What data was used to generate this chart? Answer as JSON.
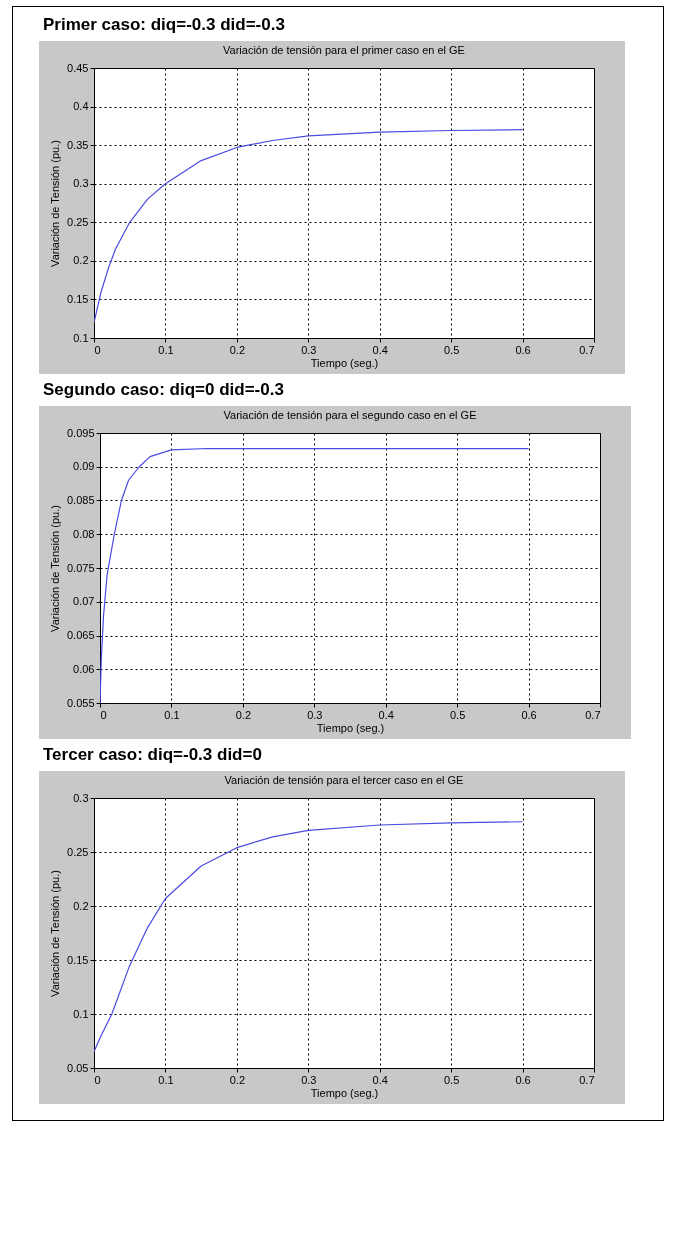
{
  "chart_data": [
    {
      "type": "line",
      "title": "Primer caso: diq=-0.3   did=-0.3",
      "subtitle": "Variación de tensión para el primer caso en el GE",
      "xlabel": "Tiempo (seg.)",
      "ylabel": "Variación de Tensión (pu.)",
      "xlim": [
        0,
        0.7
      ],
      "xticks": [
        0,
        0.1,
        0.2,
        0.3,
        0.4,
        0.5,
        0.6,
        0.7
      ],
      "ylim": [
        0.1,
        0.45
      ],
      "yticks": [
        0.1,
        0.15,
        0.2,
        0.25,
        0.3,
        0.35,
        0.4,
        0.45
      ],
      "grid": true,
      "marker": "none",
      "line_style": "solid",
      "x": [
        0,
        0.01,
        0.02,
        0.03,
        0.05,
        0.075,
        0.1,
        0.15,
        0.2,
        0.25,
        0.3,
        0.4,
        0.5,
        0.6
      ],
      "series": [
        {
          "color": "#4a4ae0",
          "values": [
            0.12,
            0.16,
            0.19,
            0.215,
            0.25,
            0.28,
            0.3,
            0.33,
            0.347,
            0.356,
            0.362,
            0.367,
            0.369,
            0.37
          ]
        }
      ]
    },
    {
      "type": "line",
      "title": "Segundo caso: diq=0   did=-0.3",
      "subtitle": "Variación de tensión para el segundo caso en el GE",
      "xlabel": "Tiempo (seg.)",
      "ylabel": "Variación de Tensión (pu.)",
      "xlim": [
        0,
        0.7
      ],
      "xticks": [
        0,
        0.1,
        0.2,
        0.3,
        0.4,
        0.5,
        0.6,
        0.7
      ],
      "ylim": [
        0.055,
        0.095
      ],
      "yticks": [
        0.055,
        0.06,
        0.065,
        0.07,
        0.075,
        0.08,
        0.085,
        0.09,
        0.095
      ],
      "grid": true,
      "marker": "none",
      "line_style": "solid",
      "x": [
        0,
        0.002,
        0.005,
        0.01,
        0.02,
        0.03,
        0.04,
        0.055,
        0.07,
        0.1,
        0.15,
        0.6
      ],
      "series": [
        {
          "color": "#4a4ae0",
          "values": [
            0.055,
            0.062,
            0.068,
            0.074,
            0.08,
            0.085,
            0.088,
            0.09,
            0.0915,
            0.0925,
            0.0927,
            0.0927
          ]
        }
      ]
    },
    {
      "type": "line",
      "title": "Tercer caso: diq=-0.3   did=0",
      "subtitle": "Variación de tensión para el tercer caso en el GE",
      "xlabel": "Tiempo (seg.)",
      "ylabel": "Variación de Tensión (pu.)",
      "xlim": [
        0,
        0.7
      ],
      "xticks": [
        0,
        0.1,
        0.2,
        0.3,
        0.4,
        0.5,
        0.6,
        0.7
      ],
      "ylim": [
        0.05,
        0.3
      ],
      "yticks": [
        0.05,
        0.1,
        0.15,
        0.2,
        0.25,
        0.3
      ],
      "grid": true,
      "marker": "none",
      "line_style": "solid",
      "x": [
        0,
        0.01,
        0.025,
        0.05,
        0.075,
        0.1,
        0.15,
        0.2,
        0.25,
        0.3,
        0.4,
        0.5,
        0.6
      ],
      "series": [
        {
          "color": "#4a4ae0",
          "values": [
            0.065,
            0.08,
            0.1,
            0.145,
            0.18,
            0.207,
            0.237,
            0.254,
            0.264,
            0.27,
            0.275,
            0.277,
            0.278
          ]
        }
      ]
    }
  ]
}
